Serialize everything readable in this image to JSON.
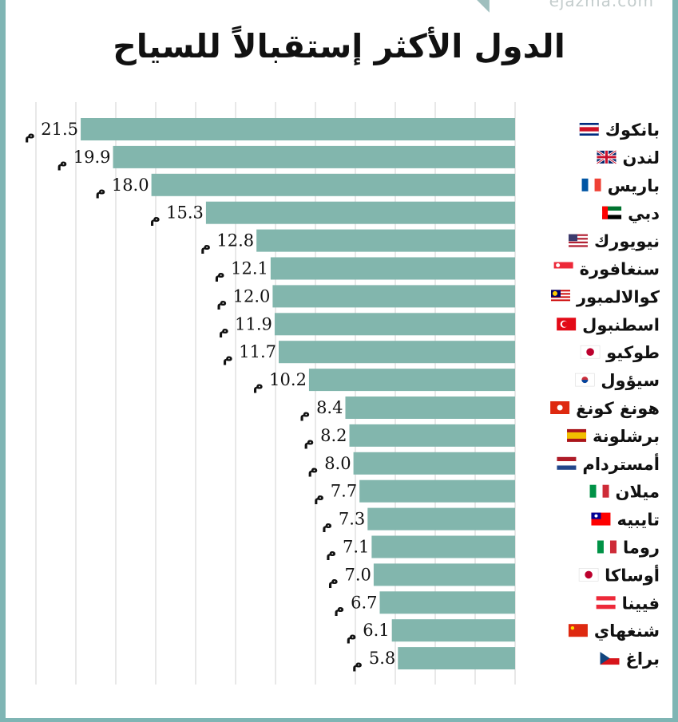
{
  "watermark": "ejazma.com",
  "brand_mark": "◥",
  "colors": {
    "bar": "#82b6ad",
    "frame": "#7fb5b4",
    "grid": "#d0d0d0"
  },
  "chart_data": {
    "type": "bar",
    "orientation": "horizontal",
    "direction": "rtl",
    "title": "الدول الأكثر إستقبالاً للسياح",
    "unit": "م",
    "grid": true,
    "xlim": [
      0,
      24
    ],
    "categories": [
      "بانكوك",
      "لندن",
      "باريس",
      "دبي",
      "نيويورك",
      "سنغافورة",
      "كوالالمبور",
      "اسطنبول",
      "طوكيو",
      "سيؤول",
      "هونغ كونغ",
      "برشلونة",
      "أمستردام",
      "ميلان",
      "تايبيه",
      "روما",
      "أوساكا",
      "فيينا",
      "شنغهاي",
      "براغ"
    ],
    "flags": [
      "costa-rica-flag",
      "uk-flag",
      "france-flag",
      "uae-flag",
      "usa-flag",
      "singapore-flag",
      "malaysia-flag",
      "turkey-flag",
      "japan-flag",
      "south-korea-flag",
      "hong-kong-flag",
      "spain-flag",
      "netherlands-flag",
      "italy-flag",
      "taiwan-flag",
      "italy-flag",
      "japan-flag",
      "austria-flag",
      "china-flag",
      "czech-flag"
    ],
    "values": [
      21.5,
      19.9,
      18.0,
      15.3,
      12.8,
      12.1,
      12.0,
      11.9,
      11.7,
      10.2,
      8.4,
      8.2,
      8.0,
      7.7,
      7.3,
      7.1,
      7.0,
      6.7,
      6.1,
      5.8
    ],
    "value_labels": [
      "21.5",
      "19.9",
      "18.0",
      "15.3",
      "12.8",
      "12.1",
      "12.0",
      "11.9",
      "11.7",
      "10.2",
      "8.4",
      "8.2",
      "8.0",
      "7.7",
      "7.3",
      "7.1",
      "7.0",
      "6.7",
      "6.1",
      "5.8"
    ]
  }
}
